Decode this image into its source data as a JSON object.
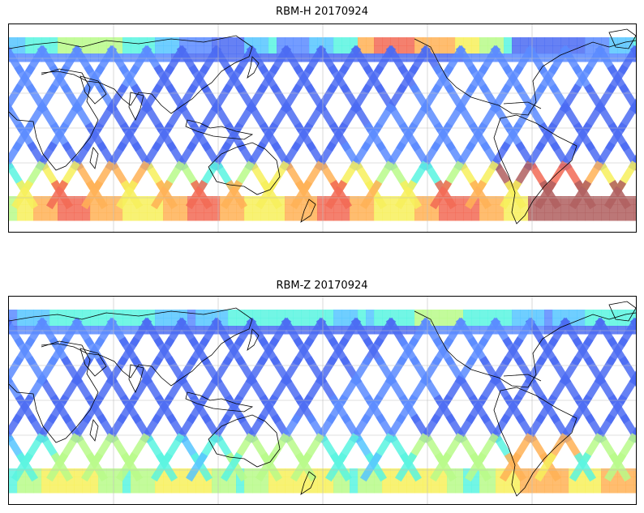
{
  "panels": [
    {
      "title": "RBM-H 20170924",
      "variant": "H"
    },
    {
      "title": "RBM-Z 20170924",
      "variant": "Z"
    }
  ],
  "colormap": [
    "#4b6bf2",
    "#5b8bff",
    "#56c6ff",
    "#59f5e0",
    "#b8fa8a",
    "#f7f05c",
    "#ffb256",
    "#f26a55",
    "#b05f5f"
  ],
  "background_color": "#ffffff",
  "coastline_color": "#000000",
  "grid": true
}
